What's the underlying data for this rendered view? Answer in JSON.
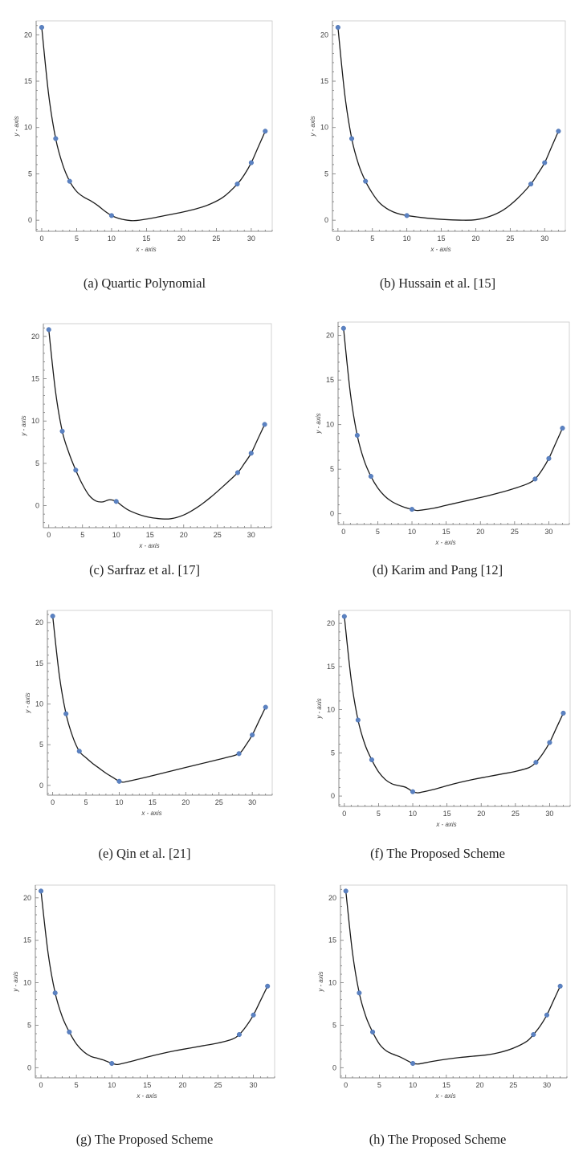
{
  "chart_data": [
    {
      "type": "line",
      "caption": "(a) Quartic Polynomial",
      "xlabel": "x - axis",
      "ylabel": "y - axis",
      "xlim": [
        -0.8,
        33
      ],
      "ylim": [
        -1.2,
        21.5
      ],
      "xticks": [
        0,
        5,
        10,
        15,
        20,
        25,
        30
      ],
      "yticks": [
        0,
        5,
        10,
        15,
        20
      ],
      "series": [
        {
          "name": "data points",
          "x": [
            0,
            2,
            4,
            10,
            28,
            30,
            32
          ],
          "y": [
            20.8,
            8.8,
            4.2,
            0.5,
            3.9,
            6.2,
            9.6
          ]
        },
        {
          "name": "interpolant",
          "x": [
            0,
            1,
            2,
            3,
            4,
            5,
            6,
            7,
            8,
            9,
            10,
            11,
            12,
            13,
            14,
            16,
            18,
            20,
            22,
            24,
            26,
            28,
            29,
            30,
            31,
            32
          ],
          "y": [
            20.8,
            13.5,
            8.8,
            6.0,
            4.2,
            3.1,
            2.5,
            2.1,
            1.6,
            1.0,
            0.5,
            0.2,
            0.03,
            -0.05,
            0.0,
            0.25,
            0.55,
            0.85,
            1.2,
            1.7,
            2.5,
            3.9,
            4.9,
            6.2,
            7.9,
            9.6
          ]
        }
      ]
    },
    {
      "type": "line",
      "caption": "(b) Hussain et al. [15]",
      "xlabel": "x - axis",
      "ylabel": "y - axis",
      "xlim": [
        -0.8,
        33
      ],
      "ylim": [
        -1.2,
        21.5
      ],
      "xticks": [
        0,
        5,
        10,
        15,
        20,
        25,
        30
      ],
      "yticks": [
        0,
        5,
        10,
        15,
        20
      ],
      "series": [
        {
          "name": "data points",
          "x": [
            0,
            2,
            4,
            10,
            28,
            30,
            32
          ],
          "y": [
            20.8,
            8.8,
            4.2,
            0.5,
            3.9,
            6.2,
            9.6
          ]
        },
        {
          "name": "interpolant",
          "x": [
            0,
            1,
            2,
            3,
            4,
            5,
            6,
            7,
            8,
            9,
            10,
            12,
            14,
            16,
            18,
            20,
            22,
            24,
            26,
            28,
            29,
            30,
            31,
            32
          ],
          "y": [
            20.8,
            13.5,
            8.8,
            6.0,
            4.2,
            2.9,
            1.9,
            1.3,
            0.9,
            0.65,
            0.5,
            0.3,
            0.15,
            0.05,
            0.0,
            0.05,
            0.4,
            1.1,
            2.3,
            3.9,
            5.0,
            6.2,
            7.9,
            9.6
          ]
        }
      ]
    },
    {
      "type": "line",
      "caption": "(c) Sarfraz et al. [17]",
      "xlabel": "x - axis",
      "ylabel": "y - axis",
      "xlim": [
        -0.8,
        33
      ],
      "ylim": [
        -2.6,
        21.5
      ],
      "xticks": [
        0,
        5,
        10,
        15,
        20,
        25,
        30
      ],
      "yticks": [
        0,
        5,
        10,
        15,
        20
      ],
      "series": [
        {
          "name": "data points",
          "x": [
            0,
            2,
            4,
            10,
            28,
            30,
            32
          ],
          "y": [
            20.8,
            8.8,
            4.2,
            0.5,
            3.9,
            6.2,
            9.6
          ]
        },
        {
          "name": "interpolant",
          "x": [
            0,
            1,
            2,
            3,
            4,
            5,
            6,
            7,
            8,
            9,
            10,
            11,
            12,
            14,
            16,
            18,
            20,
            22,
            24,
            26,
            28,
            29,
            30,
            31,
            32
          ],
          "y": [
            20.8,
            13.5,
            8.8,
            6.2,
            4.2,
            2.5,
            1.2,
            0.55,
            0.45,
            0.7,
            0.5,
            -0.1,
            -0.6,
            -1.2,
            -1.5,
            -1.55,
            -1.1,
            -0.2,
            1.0,
            2.4,
            3.9,
            5.0,
            6.2,
            7.9,
            9.6
          ]
        }
      ]
    },
    {
      "type": "line",
      "caption": "(d) Karim and Pang [12]",
      "xlabel": "x - axis",
      "ylabel": "y - axis",
      "xlim": [
        -0.8,
        33
      ],
      "ylim": [
        -1.2,
        21.5
      ],
      "xticks": [
        0,
        5,
        10,
        15,
        20,
        25,
        30
      ],
      "yticks": [
        0,
        5,
        10,
        15,
        20
      ],
      "series": [
        {
          "name": "data points",
          "x": [
            0,
            2,
            4,
            10,
            28,
            30,
            32
          ],
          "y": [
            20.8,
            8.8,
            4.2,
            0.5,
            3.9,
            6.2,
            9.6
          ]
        },
        {
          "name": "interpolant",
          "x": [
            0,
            1,
            2,
            3,
            4,
            5,
            6,
            7,
            8,
            9,
            10,
            10.5,
            11,
            13,
            15,
            17,
            19,
            21,
            23,
            25,
            27,
            28,
            29,
            30,
            31,
            32
          ],
          "y": [
            20.8,
            13.5,
            8.8,
            6.0,
            4.2,
            2.9,
            2.0,
            1.4,
            1.0,
            0.7,
            0.5,
            0.4,
            0.38,
            0.6,
            0.95,
            1.3,
            1.65,
            2.0,
            2.4,
            2.85,
            3.4,
            3.9,
            4.9,
            6.2,
            7.9,
            9.6
          ]
        }
      ]
    },
    {
      "type": "line",
      "caption": "(e) Qin et al. [21]",
      "xlabel": "x - axis",
      "ylabel": "y - axis",
      "xlim": [
        -0.8,
        33
      ],
      "ylim": [
        -1.2,
        21.5
      ],
      "xticks": [
        0,
        5,
        10,
        15,
        20,
        25,
        30
      ],
      "yticks": [
        0,
        5,
        10,
        15,
        20
      ],
      "series": [
        {
          "name": "data points",
          "x": [
            0,
            2,
            4,
            10,
            28,
            30,
            32
          ],
          "y": [
            20.8,
            8.8,
            4.2,
            0.5,
            3.9,
            6.2,
            9.6
          ]
        },
        {
          "name": "interpolant",
          "x": [
            0,
            1,
            2,
            3,
            4,
            5,
            6,
            7,
            8,
            9,
            10,
            10.5,
            11,
            14,
            17,
            20,
            23,
            26,
            28,
            29,
            30,
            31,
            32
          ],
          "y": [
            20.8,
            13.5,
            8.8,
            6.0,
            4.2,
            3.4,
            2.7,
            2.1,
            1.5,
            1.0,
            0.5,
            0.4,
            0.45,
            1.0,
            1.6,
            2.2,
            2.8,
            3.4,
            3.9,
            4.9,
            6.2,
            7.9,
            9.6
          ]
        }
      ]
    },
    {
      "type": "line",
      "caption": "(f) The Proposed Scheme",
      "xlabel": "x - axis",
      "ylabel": "y - axis",
      "xlim": [
        -0.8,
        33
      ],
      "ylim": [
        -1.2,
        21.5
      ],
      "xticks": [
        0,
        5,
        10,
        15,
        20,
        25,
        30
      ],
      "yticks": [
        0,
        5,
        10,
        15,
        20
      ],
      "series": [
        {
          "name": "data points",
          "x": [
            0,
            2,
            4,
            10,
            28,
            30,
            32
          ],
          "y": [
            20.8,
            8.8,
            4.2,
            0.5,
            3.9,
            6.2,
            9.6
          ]
        },
        {
          "name": "interpolant",
          "x": [
            0,
            1,
            2,
            3,
            4,
            5,
            6,
            7,
            8,
            9,
            10,
            10.5,
            11,
            13,
            15,
            17,
            19,
            21,
            23,
            25,
            27,
            28,
            29,
            30,
            31,
            32
          ],
          "y": [
            20.8,
            13.5,
            8.8,
            6.0,
            4.2,
            2.8,
            1.9,
            1.4,
            1.2,
            1.0,
            0.5,
            0.4,
            0.4,
            0.75,
            1.2,
            1.6,
            1.95,
            2.25,
            2.55,
            2.85,
            3.3,
            3.9,
            4.9,
            6.2,
            7.9,
            9.6
          ]
        }
      ]
    },
    {
      "type": "line",
      "caption": "(g) The Proposed Scheme",
      "xlabel": "x - axis",
      "ylabel": "y - axis",
      "xlim": [
        -0.8,
        33
      ],
      "ylim": [
        -1.2,
        21.5
      ],
      "xticks": [
        0,
        5,
        10,
        15,
        20,
        25,
        30
      ],
      "yticks": [
        0,
        5,
        10,
        15,
        20
      ],
      "series": [
        {
          "name": "data points",
          "x": [
            0,
            2,
            4,
            10,
            28,
            30,
            32
          ],
          "y": [
            20.8,
            8.8,
            4.2,
            0.5,
            3.9,
            6.2,
            9.6
          ]
        },
        {
          "name": "interpolant",
          "x": [
            0,
            1,
            2,
            3,
            4,
            5,
            6,
            7,
            8,
            9,
            10,
            10.5,
            11,
            13,
            15,
            17,
            19,
            21,
            23,
            25,
            27,
            28,
            29,
            30,
            31,
            32
          ],
          "y": [
            20.8,
            13.5,
            8.8,
            6.0,
            4.2,
            2.8,
            1.9,
            1.35,
            1.1,
            0.85,
            0.5,
            0.4,
            0.4,
            0.8,
            1.25,
            1.65,
            2.0,
            2.3,
            2.6,
            2.9,
            3.35,
            3.9,
            4.9,
            6.2,
            7.9,
            9.6
          ]
        }
      ]
    },
    {
      "type": "line",
      "caption": "(h) The Proposed Scheme",
      "xlabel": "x - axis",
      "ylabel": "y - axis",
      "xlim": [
        -0.8,
        33
      ],
      "ylim": [
        -1.2,
        21.5
      ],
      "xticks": [
        0,
        5,
        10,
        15,
        20,
        25,
        30
      ],
      "yticks": [
        0,
        5,
        10,
        15,
        20
      ],
      "series": [
        {
          "name": "data points",
          "x": [
            0,
            2,
            4,
            10,
            28,
            30,
            32
          ],
          "y": [
            20.8,
            8.8,
            4.2,
            0.5,
            3.9,
            6.2,
            9.6
          ]
        },
        {
          "name": "interpolant",
          "x": [
            0,
            1,
            2,
            3,
            4,
            5,
            6,
            7,
            8,
            9,
            10,
            10.5,
            11,
            13,
            15,
            17,
            19,
            21,
            23,
            25,
            27,
            28,
            29,
            30,
            31,
            32
          ],
          "y": [
            20.8,
            13.5,
            8.8,
            6.0,
            4.2,
            2.8,
            2.0,
            1.6,
            1.3,
            0.9,
            0.5,
            0.45,
            0.45,
            0.75,
            1.0,
            1.2,
            1.35,
            1.5,
            1.8,
            2.3,
            3.1,
            3.9,
            4.9,
            6.2,
            7.9,
            9.6
          ]
        }
      ]
    }
  ]
}
